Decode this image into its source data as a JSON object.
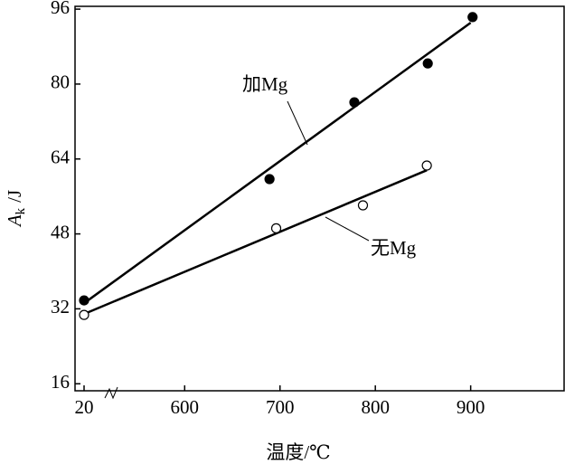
{
  "chart_data": {
    "type": "scatter",
    "xlabel": "温度/℃",
    "ylabel": {
      "symbol": "A",
      "sub": "k",
      "unit": "/J"
    },
    "xlim": [
      485,
      998
    ],
    "ylim": [
      14.5,
      96.6
    ],
    "xticks": [
      20,
      600,
      700,
      800,
      900
    ],
    "yticks": [
      16,
      32,
      48,
      64,
      80,
      96
    ],
    "x_axis_break": true,
    "series": [
      {
        "name": "加Mg",
        "color": "#000000",
        "marker": "filled",
        "x": [
          20,
          689,
          778,
          855,
          902
        ],
        "values": [
          33.8,
          59.7,
          76.1,
          84.4,
          94.3
        ],
        "fit": {
          "x": [
            20,
            900
          ],
          "values": [
            33.2,
            93.1
          ]
        }
      },
      {
        "name": "无Mg",
        "color": "#000000",
        "marker": "hollow",
        "x": [
          20,
          696,
          787,
          854
        ],
        "values": [
          30.7,
          49.2,
          54.1,
          62.6
        ],
        "fit": {
          "x": [
            20,
            854
          ],
          "values": [
            30.9,
            61.6
          ]
        }
      }
    ]
  }
}
